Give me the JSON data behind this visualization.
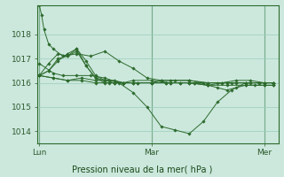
{
  "bg_color": "#cce8dd",
  "line_color": "#2d6b2d",
  "grid_color": "#99ccbb",
  "title": "Pression niveau de la mer( hPa )",
  "xlabel_ticks": [
    "Lun",
    "Mar",
    "Mer"
  ],
  "xlabel_tick_positions": [
    0,
    24,
    48
  ],
  "ylim": [
    1013.5,
    1019.2
  ],
  "yticks": [
    1014,
    1015,
    1016,
    1017,
    1018
  ],
  "xlim": [
    -0.5,
    51
  ],
  "series": [
    [
      0,
      1019.2,
      0.5,
      1018.8,
      1,
      1018.2,
      2,
      1017.6,
      3,
      1017.4,
      5,
      1017.1,
      8,
      1017.2,
      11,
      1017.1,
      14,
      1017.3,
      17,
      1016.9,
      20,
      1016.6,
      23,
      1016.2,
      26,
      1016.1,
      29,
      1016.1,
      32,
      1016.1,
      35,
      1016.0,
      38,
      1016.0,
      41,
      1016.0,
      44,
      1016.0,
      47,
      1016.0,
      50,
      1016.0
    ],
    [
      0,
      1016.8,
      3,
      1016.4,
      5,
      1016.3,
      8,
      1016.3,
      11,
      1016.3,
      14,
      1016.2,
      17,
      1016.0,
      20,
      1015.6,
      23,
      1015.0,
      26,
      1014.2,
      29,
      1014.05,
      32,
      1013.9,
      35,
      1014.4,
      38,
      1015.2,
      41,
      1015.7,
      44,
      1016.0,
      47,
      1016.0,
      50,
      1016.0
    ],
    [
      0,
      1016.3,
      3,
      1016.2,
      6,
      1016.1,
      9,
      1016.1,
      12,
      1016.0,
      15,
      1016.0,
      18,
      1016.0,
      21,
      1016.0,
      24,
      1016.0,
      27,
      1016.0,
      30,
      1016.0,
      33,
      1016.0,
      36,
      1016.0,
      39,
      1016.0,
      42,
      1016.0,
      45,
      1016.0,
      48,
      1016.0,
      50,
      1016.0
    ],
    [
      0,
      1016.3,
      2,
      1016.8,
      4,
      1017.2,
      6,
      1017.1,
      8,
      1017.3,
      10,
      1016.7,
      12,
      1016.2,
      14,
      1016.1,
      16,
      1016.0,
      18,
      1016.0,
      20,
      1016.0,
      24,
      1016.0,
      28,
      1016.0,
      32,
      1016.0,
      36,
      1015.9,
      40,
      1015.9,
      44,
      1015.9,
      48,
      1015.9,
      50,
      1015.9
    ],
    [
      0,
      1016.3,
      2,
      1016.5,
      4,
      1017.0,
      6,
      1017.1,
      8,
      1017.4,
      10,
      1016.7,
      12,
      1016.2,
      14,
      1016.0,
      16,
      1016.0,
      18,
      1016.0,
      20,
      1016.0,
      24,
      1016.0,
      26,
      1016.1,
      28,
      1016.1,
      32,
      1016.1,
      36,
      1016.0,
      40,
      1016.0,
      44,
      1016.0,
      48,
      1016.0,
      50,
      1016.0
    ],
    [
      0,
      1016.3,
      2,
      1016.5,
      4,
      1016.9,
      6,
      1017.2,
      8,
      1017.4,
      10,
      1016.9,
      12,
      1016.3,
      14,
      1016.1,
      16,
      1016.1,
      18,
      1016.0,
      20,
      1016.1,
      24,
      1016.1,
      28,
      1016.0,
      32,
      1016.0,
      36,
      1015.9,
      38,
      1015.8,
      40,
      1015.7,
      42,
      1015.8,
      44,
      1015.9,
      46,
      1015.9,
      48,
      1015.9,
      50,
      1015.9
    ],
    [
      0,
      1016.3,
      3,
      1016.2,
      6,
      1016.1,
      9,
      1016.2,
      12,
      1016.1,
      15,
      1016.1,
      18,
      1016.0,
      21,
      1016.0,
      24,
      1016.0,
      27,
      1016.0,
      30,
      1016.0,
      33,
      1016.0,
      36,
      1015.9,
      39,
      1016.0,
      42,
      1016.1,
      45,
      1016.1,
      48,
      1016.0,
      50,
      1016.0
    ]
  ]
}
